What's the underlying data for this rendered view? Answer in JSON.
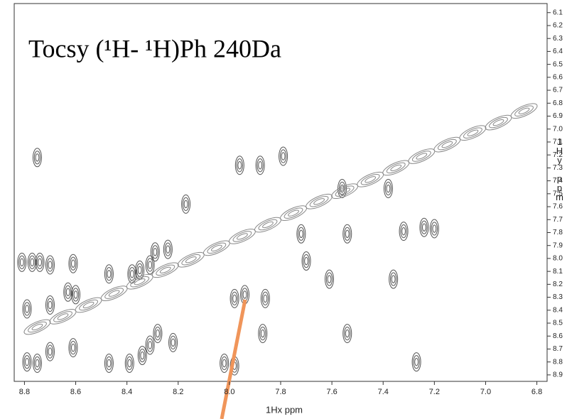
{
  "chart_data": {
    "type": "contour",
    "title": "Tocsy (¹H- ¹H)Ph 240Da",
    "x_label": "1Hx ppm",
    "y_label": "1Hy ppm",
    "xlim": [
      8.84,
      6.76
    ],
    "ylim": [
      6.03,
      8.95
    ],
    "xticks": [
      8.8,
      8.6,
      8.4,
      8.2,
      {
        "value": 8,
        "label": "8.0"
      },
      7.8,
      7.6,
      7.4,
      7.2,
      {
        "value": 7,
        "label": "7.0"
      },
      6.8
    ],
    "yticks": [
      6.1,
      6.2,
      6.3,
      6.4,
      6.5,
      6.6,
      6.7,
      6.8,
      6.9,
      {
        "value": 7,
        "label": "7.0"
      },
      7.1,
      7.2,
      7.3,
      7.4,
      7.5,
      7.6,
      7.7,
      7.8,
      7.9,
      {
        "value": 8,
        "label": "8.0"
      },
      8.1,
      8.2,
      8.3,
      8.4,
      8.5,
      8.6,
      8.7,
      8.8,
      8.9
    ],
    "series": [
      {
        "color": "#555555",
        "x": [
          8.75,
          8.81,
          8.77,
          8.74,
          8.7,
          8.61,
          8.47,
          8.38,
          8.35,
          8.31,
          8.29,
          8.24,
          8.17,
          7.96,
          7.88,
          7.79,
          7.61,
          7.36,
          7.32,
          7.24,
          7.2,
          8.79,
          8.7,
          8.63,
          8.6,
          7.98,
          7.94,
          7.86,
          8.79,
          8.75,
          8.7,
          8.61,
          8.47,
          8.39,
          8.34,
          8.31,
          8.28,
          8.22,
          8.02,
          7.98,
          7.87,
          7.54,
          7.27,
          7.7,
          7.72,
          7.56,
          7.54,
          7.38
        ],
        "y": [
          7.22,
          8.03,
          8.03,
          8.03,
          8.05,
          8.04,
          8.12,
          8.12,
          8.09,
          8.05,
          7.95,
          7.93,
          7.58,
          7.28,
          7.28,
          7.21,
          8.16,
          8.16,
          7.79,
          7.76,
          7.77,
          8.39,
          8.36,
          8.26,
          8.28,
          8.31,
          8.28,
          8.31,
          8.8,
          8.81,
          8.72,
          8.69,
          8.81,
          8.81,
          8.75,
          8.67,
          8.58,
          8.65,
          8.81,
          8.83,
          8.58,
          8.58,
          8.8,
          8.02,
          7.81,
          7.46,
          7.81,
          7.46
        ]
      },
      {
        "color": "#888888",
        "x": [
          8.75,
          8.65,
          8.55,
          8.45,
          8.35,
          8.25,
          8.15,
          8.05,
          7.95,
          7.85,
          7.75,
          7.65,
          7.55,
          7.45,
          7.35,
          7.25,
          7.15,
          7.05,
          6.95,
          6.85
        ],
        "y": [
          8.53,
          8.45,
          8.36,
          8.27,
          8.18,
          8.09,
          8.01,
          7.92,
          7.83,
          7.74,
          7.65,
          7.56,
          7.48,
          7.39,
          7.3,
          7.21,
          7.12,
          7.03,
          6.95,
          6.86
        ]
      }
    ]
  }
}
